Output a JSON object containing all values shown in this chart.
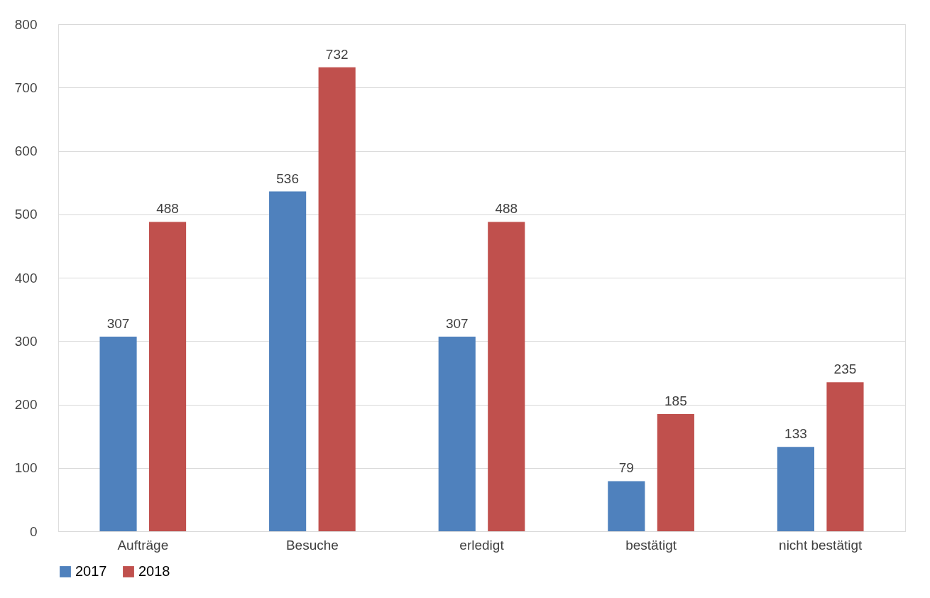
{
  "chart_data": {
    "type": "bar",
    "categories": [
      "Aufträge",
      "Besuche",
      "erledigt",
      "bestätigt",
      "nicht bestätigt"
    ],
    "series": [
      {
        "name": "2017",
        "color": "#4f81bd",
        "values": [
          307,
          536,
          307,
          79,
          133
        ]
      },
      {
        "name": "2018",
        "color": "#c0504d",
        "values": [
          488,
          732,
          488,
          185,
          235
        ]
      }
    ],
    "ylim": [
      0,
      800
    ],
    "yticks": [
      0,
      100,
      200,
      300,
      400,
      500,
      600,
      700,
      800
    ],
    "grid": "y",
    "legend": "bottom",
    "data_labels": true
  }
}
